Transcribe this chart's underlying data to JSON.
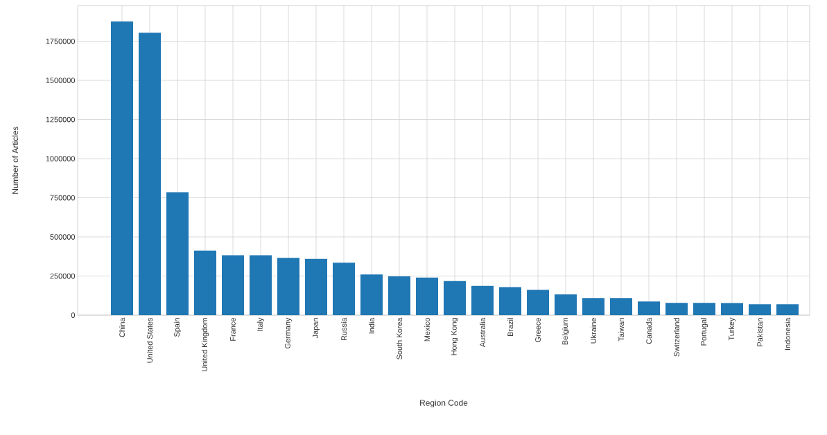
{
  "chart_data": {
    "type": "bar",
    "xlabel": "Region Code",
    "ylabel": "Number of Articles",
    "categories": [
      "China",
      "United States",
      "Spain",
      "United Kingdom",
      "France",
      "Italy",
      "Germany",
      "Japan",
      "Russia",
      "India",
      "South Korea",
      "Mexico",
      "Hong Kong",
      "Australia",
      "Brazil",
      "Greece",
      "Belgium",
      "Ukraine",
      "Taiwan",
      "Canada",
      "Switzerland",
      "Portugal",
      "Turkey",
      "Pakistan",
      "Indonesia"
    ],
    "values": [
      1876000,
      1804000,
      786000,
      413000,
      383000,
      383000,
      366000,
      359000,
      335000,
      260000,
      248000,
      240000,
      218000,
      187000,
      179000,
      162000,
      133000,
      109000,
      109000,
      87000,
      78000,
      78000,
      77000,
      70000,
      70000
    ],
    "color": "#1f77b4",
    "ylim": [
      0,
      1978000
    ],
    "yticks": [
      0,
      250000,
      500000,
      750000,
      1000000,
      1250000,
      1500000,
      1750000
    ],
    "grid": true
  }
}
